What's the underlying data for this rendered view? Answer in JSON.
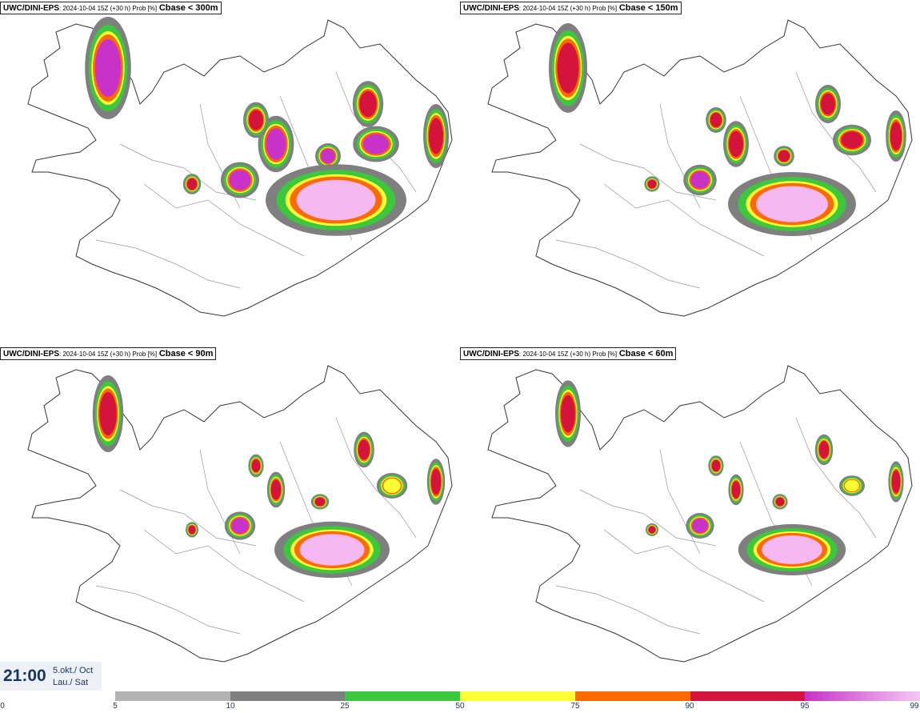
{
  "panels": [
    {
      "model": "UWC/DINI-EPS",
      "meta": ": 2024-10-04 15Z (+30 h) Prob [%]",
      "label": "Cbase < 300m"
    },
    {
      "model": "UWC/DINI-EPS",
      "meta": ": 2024-10-04 15Z (+30 h) Prob [%]",
      "label": "Cbase < 150m"
    },
    {
      "model": "UWC/DINI-EPS",
      "meta": ": 2024-10-04 15Z (+30 h) Prob [%]",
      "label": "Cbase < 90m"
    },
    {
      "model": "UWC/DINI-EPS",
      "meta": ": 2024-10-04 15Z (+30 h) Prob [%]",
      "label": "Cbase < 60m"
    }
  ],
  "time_box": {
    "time": "21:00",
    "date_line1": "5.okt./ Oct",
    "date_line2": "Lau./ Sat"
  },
  "legend": {
    "ticks": [
      "0",
      "5",
      "10",
      "25",
      "50",
      "75",
      "90",
      "95",
      "99"
    ],
    "colors": [
      "#b3b3b3",
      "#7f7f7f",
      "#3cc83c",
      "#ffff33",
      "#ff6a00",
      "#d4143c",
      "#c832c8"
    ]
  }
}
